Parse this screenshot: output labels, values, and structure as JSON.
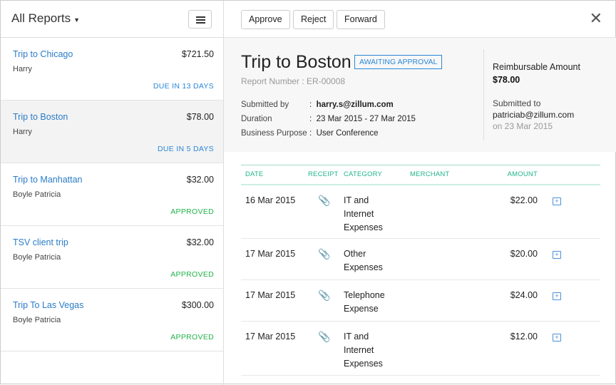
{
  "sidebar": {
    "title": "All Reports",
    "items": [
      {
        "name": "Trip to Chicago",
        "amount": "$721.50",
        "person": "Harry",
        "status": "DUE IN 13 DAYS",
        "status_color": "#2a88d8"
      },
      {
        "name": "Trip to Boston",
        "amount": "$78.00",
        "person": "Harry",
        "status": "DUE IN 5 DAYS",
        "status_color": "#2a88d8"
      },
      {
        "name": "Trip to Manhattan",
        "amount": "$32.00",
        "person": "Boyle Patricia",
        "status": "APPROVED",
        "status_color": "#22b34a"
      },
      {
        "name": "TSV client trip",
        "amount": "$32.00",
        "person": "Boyle Patricia",
        "status": "APPROVED",
        "status_color": "#22b34a"
      },
      {
        "name": "Trip To Las Vegas",
        "amount": "$300.00",
        "person": "Boyle Patricia",
        "status": "APPROVED",
        "status_color": "#22b34a"
      }
    ]
  },
  "toolbar": {
    "approve": "Approve",
    "reject": "Reject",
    "forward": "Forward"
  },
  "report": {
    "title": "Trip to Boston",
    "badge": "AWAITING APPROVAL",
    "number": "Report Number : ER-00008",
    "fields": [
      {
        "label": "Submitted by",
        "value": "harry.s@zillum.com"
      },
      {
        "label": "Duration",
        "value": "23 Mar 2015 - 27 Mar 2015"
      },
      {
        "label": "Business Purpose",
        "value": "User Conference"
      }
    ],
    "reimb_label": "Reimbursable Amount",
    "reimb_value": "$78.00",
    "submitted_to_label": "Submitted to",
    "submitted_to": "patriciab@zillum.com",
    "submitted_on": "on 23 Mar 2015"
  },
  "table": {
    "headers": [
      "DATE",
      "RECEIPT",
      "CATEGORY",
      "MERCHANT",
      "AMOUNT"
    ],
    "rows": [
      {
        "date": "16 Mar 2015",
        "category": [
          "IT and",
          "Internet",
          "Expenses"
        ],
        "amount": "$22.00"
      },
      {
        "date": "17 Mar 2015",
        "category": [
          "Other",
          "Expenses"
        ],
        "amount": "$20.00"
      },
      {
        "date": "17 Mar 2015",
        "category": [
          "Telephone",
          "Expense"
        ],
        "amount": "$24.00"
      },
      {
        "date": "17 Mar 2015",
        "category": [
          "IT and",
          "Internet",
          "Expenses"
        ],
        "amount": "$12.00"
      }
    ]
  }
}
